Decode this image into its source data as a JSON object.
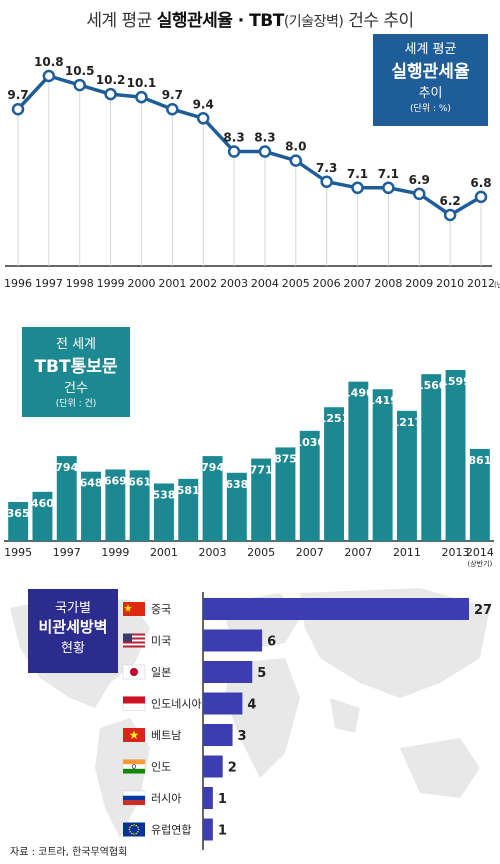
{
  "header": {
    "title_plain": "세계 평균 ",
    "title_strong": "실행관세율 · TBT",
    "title_paren": "(기술장벽)",
    "title_tail": " 건수 추이"
  },
  "line_callout": {
    "l1": "세계 평균",
    "l2": "실행관세율",
    "l3": "추이",
    "l4": "(단위 : %)"
  },
  "bar_callout": {
    "l1": "전 세계",
    "l2": "TBT통보문",
    "l3": "건수",
    "l4": "(단위 : 건)"
  },
  "country_callout": {
    "l1": "국가별",
    "l2": "비관세방벽",
    "l3": "현황"
  },
  "source": "자료 : 코트라, 한국무역협회",
  "colors": {
    "line": "#1f5d99",
    "bar": "#1c8891",
    "hbar": "#3d3db2",
    "map": "#e6e6e6"
  },
  "chart_data": [
    {
      "type": "line",
      "x": [
        "1996",
        "1997",
        "1998",
        "1999",
        "2000",
        "2001",
        "2002",
        "2003",
        "2004",
        "2005",
        "2006",
        "2007",
        "2008",
        "2009",
        "2010",
        "2012"
      ],
      "x_suffix_last": "(년)",
      "values": [
        9.7,
        10.8,
        10.5,
        10.2,
        10.1,
        9.7,
        9.4,
        8.3,
        8.3,
        8.0,
        7.3,
        7.1,
        7.1,
        6.9,
        6.2,
        6.8
      ],
      "labels": [
        "9.7",
        "10.8",
        "10.5",
        "10.2",
        "10.1",
        "9.7",
        "9.4",
        "8.3",
        "8.3",
        "8.0",
        "7.3",
        "7.1",
        "7.1",
        "6.9",
        "6.2",
        "6.8"
      ]
    },
    {
      "type": "bar",
      "values": [
        365,
        460,
        794,
        648,
        669,
        661,
        538,
        581,
        794,
        638,
        771,
        875,
        1030,
        1251,
        1490,
        1419,
        1217,
        1560,
        1599,
        861
      ],
      "tick_labels": [
        "1995",
        "",
        "1997",
        "",
        "1999",
        "",
        "2001",
        "",
        "2003",
        "",
        "2005",
        "",
        "2007",
        "",
        "2007",
        "",
        "2011",
        "",
        "2013",
        "2014"
      ],
      "tick_note_last": "(상반기)"
    },
    {
      "type": "bar",
      "orientation": "horizontal",
      "categories": [
        "중국",
        "미국",
        "일본",
        "인도네시아",
        "베트남",
        "인도",
        "러시아",
        "유럽연합"
      ],
      "values": [
        27,
        6,
        5,
        4,
        3,
        2,
        1,
        1
      ]
    }
  ]
}
